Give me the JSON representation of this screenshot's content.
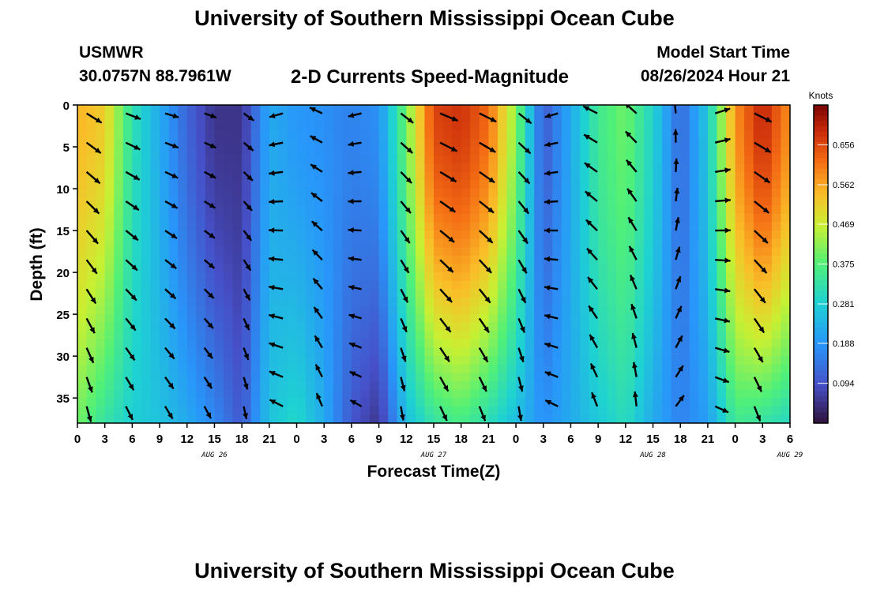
{
  "header": {
    "title": "University of Southern Mississippi Ocean Cube",
    "station": "USMWR",
    "coords": "30.0757N  88.7961W",
    "subtitle": "2-D Currents Speed-Magnitude",
    "model_start_label": "Model Start Time",
    "model_start_value": "08/26/2024 Hour 21"
  },
  "footer": {
    "title": "University of Southern Mississippi Ocean Cube"
  },
  "chart_data": {
    "type": "heatmap",
    "title": "2-D Currents Speed-Magnitude",
    "xlabel": "Forecast Time(Z)",
    "ylabel": "Depth (ft)",
    "x_ticks": [
      "0",
      "3",
      "6",
      "9",
      "12",
      "15",
      "18",
      "21",
      "0",
      "3",
      "6",
      "9",
      "12",
      "15",
      "18",
      "21",
      "0",
      "3",
      "6",
      "9",
      "12",
      "15",
      "18",
      "21",
      "0",
      "3",
      "6"
    ],
    "x_day_labels": [
      {
        "label": "AUG 26",
        "hours_from_start": 15
      },
      {
        "label": "AUG 27",
        "hours_from_start": 39
      },
      {
        "label": "AUG 28",
        "hours_from_start": 63
      },
      {
        "label": "AUG 29",
        "hours_from_start": 78
      }
    ],
    "xlim_hours": [
      0,
      78
    ],
    "y_ticks": [
      "0",
      "5",
      "10",
      "15",
      "20",
      "25",
      "30",
      "35"
    ],
    "ylim_ft": [
      0,
      38
    ],
    "y_inverted": true,
    "colorbar": {
      "title": "Knots",
      "ticks": [
        "0.656",
        "0.562",
        "0.469",
        "0.375",
        "0.281",
        "0.188",
        "0.094"
      ],
      "range": [
        0,
        0.75
      ]
    },
    "speed_columns": [
      {
        "h": 0,
        "top": 0.55,
        "bottom": 0.4
      },
      {
        "h": 3,
        "top": 0.52,
        "bottom": 0.33
      },
      {
        "h": 6,
        "top": 0.32,
        "bottom": 0.28
      },
      {
        "h": 9,
        "top": 0.22,
        "bottom": 0.26
      },
      {
        "h": 12,
        "top": 0.12,
        "bottom": 0.22
      },
      {
        "h": 15,
        "top": 0.05,
        "bottom": 0.17
      },
      {
        "h": 18,
        "top": 0.05,
        "bottom": 0.1
      },
      {
        "h": 21,
        "top": 0.22,
        "bottom": 0.26
      },
      {
        "h": 24,
        "top": 0.19,
        "bottom": 0.3
      },
      {
        "h": 27,
        "top": 0.18,
        "bottom": 0.22
      },
      {
        "h": 30,
        "top": 0.16,
        "bottom": 0.1
      },
      {
        "h": 33,
        "top": 0.18,
        "bottom": 0.05
      },
      {
        "h": 36,
        "top": 0.4,
        "bottom": 0.25
      },
      {
        "h": 39,
        "top": 0.66,
        "bottom": 0.33
      },
      {
        "h": 42,
        "top": 0.68,
        "bottom": 0.36
      },
      {
        "h": 45,
        "top": 0.62,
        "bottom": 0.31
      },
      {
        "h": 48,
        "top": 0.42,
        "bottom": 0.25
      },
      {
        "h": 51,
        "top": 0.1,
        "bottom": 0.18
      },
      {
        "h": 54,
        "top": 0.22,
        "bottom": 0.22
      },
      {
        "h": 57,
        "top": 0.35,
        "bottom": 0.27
      },
      {
        "h": 60,
        "top": 0.4,
        "bottom": 0.31
      },
      {
        "h": 63,
        "top": 0.29,
        "bottom": 0.22
      },
      {
        "h": 66,
        "top": 0.12,
        "bottom": 0.16
      },
      {
        "h": 69,
        "top": 0.27,
        "bottom": 0.2
      },
      {
        "h": 72,
        "top": 0.58,
        "bottom": 0.35
      },
      {
        "h": 75,
        "top": 0.7,
        "bottom": 0.33
      },
      {
        "h": 78,
        "top": 0.58,
        "bottom": 0.3
      }
    ],
    "vector_rows_ft": [
      1,
      4.5,
      8,
      11.5,
      15,
      18.5,
      22,
      25.5,
      29,
      32.5,
      36
    ],
    "vector_direction_deg": [
      {
        "h": 0,
        "dir": 145
      },
      {
        "h": 6,
        "dir": 130
      },
      {
        "h": 12,
        "dir": 125
      },
      {
        "h": 18,
        "dir": 140
      },
      {
        "h": 24,
        "dir": 320
      },
      {
        "h": 30,
        "dir": 310
      },
      {
        "h": 36,
        "dir": 130
      },
      {
        "h": 42,
        "dir": 135
      },
      {
        "h": 48,
        "dir": 140
      },
      {
        "h": 54,
        "dir": 315
      },
      {
        "h": 60,
        "dir": 320
      },
      {
        "h": 66,
        "dir": 20
      },
      {
        "h": 72,
        "dir": 135
      },
      {
        "h": 78,
        "dir": 140
      }
    ]
  }
}
